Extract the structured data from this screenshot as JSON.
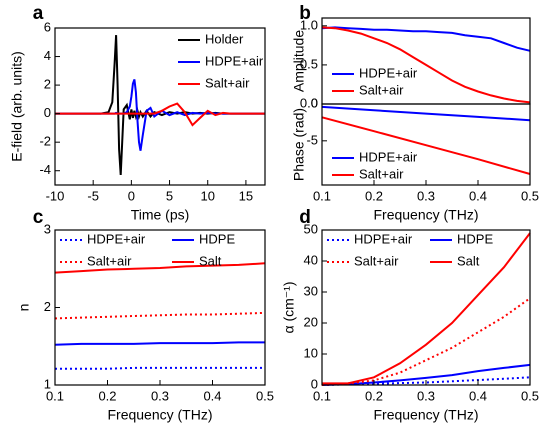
{
  "chart_data": [
    {
      "type": "line",
      "label": "a",
      "xlabel": "Time (ps)",
      "ylabel": "E-field (arb. units)",
      "xlim": [
        -10,
        17.5
      ],
      "xticks": [
        -10,
        -5,
        0,
        5,
        10,
        15
      ],
      "ylim": [
        -5,
        6
      ],
      "yticks": [
        -4,
        -2,
        0,
        2,
        4,
        6
      ],
      "legend": "upper right",
      "x": [
        -10,
        -8,
        -6,
        -4,
        -3,
        -2.5,
        -2.2,
        -2,
        -1.8,
        -1.6,
        -1.4,
        -1.2,
        -1,
        -0.6,
        -0.2,
        0,
        0.2,
        0.4,
        0.6,
        0.8,
        1,
        1.2,
        1.5,
        2,
        2.5,
        3,
        4,
        5,
        6,
        7,
        8,
        9,
        10,
        11,
        12,
        13,
        15,
        17.5
      ],
      "series": [
        {
          "name": "Holder",
          "color": "#000000",
          "values": [
            0,
            0,
            0,
            0,
            0.1,
            0.8,
            3.5,
            5.5,
            2,
            -2.5,
            -4.3,
            -2,
            0.3,
            0.6,
            -0.4,
            0.3,
            -0.3,
            0.2,
            -0.2,
            0.2,
            -0.2,
            0.1,
            -0.2,
            0.2,
            -0.2,
            0.1,
            -0.1,
            0.1,
            0,
            0.1,
            0,
            0.05,
            0,
            0.05,
            0,
            0,
            0,
            0
          ]
        },
        {
          "name": "HDPE+air",
          "color": "#0000ff",
          "values": [
            0,
            0,
            0,
            0,
            0,
            0,
            0,
            0.05,
            0,
            0,
            0,
            0,
            0,
            0.1,
            0.5,
            1.2,
            2.1,
            2.4,
            1.5,
            -0.5,
            -2,
            -2.6,
            -1.5,
            0.2,
            0.4,
            -0.2,
            0.2,
            -0.1,
            0.1,
            -0.1,
            0.05,
            0,
            0.05,
            0,
            0,
            0,
            0,
            0
          ]
        },
        {
          "name": "Salt+air",
          "color": "#ff0000",
          "values": [
            0,
            0,
            0,
            0,
            0,
            0,
            0,
            0,
            0,
            0,
            0,
            0,
            0,
            0,
            0,
            0,
            0,
            0,
            0,
            0,
            0,
            0,
            0,
            0,
            0,
            0,
            0.2,
            0.5,
            0.7,
            0.1,
            -0.8,
            -0.3,
            0.2,
            -0.1,
            0.05,
            0,
            0,
            0
          ]
        }
      ]
    },
    {
      "type": "line",
      "label": "b",
      "ylabel": "Amplitude",
      "xlim": [
        0.1,
        0.5
      ],
      "ylim": [
        0,
        1.1
      ],
      "yticks": [
        {
          "value": 0,
          "label": "0.0"
        },
        {
          "value": 0.5,
          "label": "0.5"
        },
        {
          "value": 1,
          "label": "1.0"
        }
      ],
      "legend": "lower left",
      "x": [
        0.1,
        0.125,
        0.15,
        0.175,
        0.2,
        0.225,
        0.25,
        0.275,
        0.3,
        0.325,
        0.35,
        0.375,
        0.4,
        0.425,
        0.45,
        0.475,
        0.5
      ],
      "series": [
        {
          "name": "HDPE+air",
          "color": "#0000ff",
          "values": [
            0.97,
            0.98,
            0.97,
            0.96,
            0.95,
            0.95,
            0.94,
            0.93,
            0.93,
            0.92,
            0.91,
            0.88,
            0.86,
            0.84,
            0.78,
            0.72,
            0.68
          ]
        },
        {
          "name": "Salt+air",
          "color": "#ff0000",
          "values": [
            0.98,
            0.97,
            0.94,
            0.9,
            0.84,
            0.78,
            0.7,
            0.6,
            0.5,
            0.4,
            0.3,
            0.22,
            0.16,
            0.11,
            0.07,
            0.04,
            0.02
          ]
        }
      ]
    },
    {
      "type": "line",
      "xlabel": "Frequency (THz)",
      "ylabel": "Phase (rad)",
      "xlim": [
        0.1,
        0.5
      ],
      "xticks": [
        0.1,
        0.2,
        0.3,
        0.4,
        0.5
      ],
      "ylim": [
        -11,
        0
      ],
      "yticks": [
        0,
        -5
      ],
      "legend": "lower left",
      "x": [
        0.1,
        0.2,
        0.3,
        0.4,
        0.5
      ],
      "series": [
        {
          "name": "HDPE+air",
          "color": "#0000ff",
          "values": [
            -0.4,
            -0.85,
            -1.3,
            -1.75,
            -2.2
          ]
        },
        {
          "name": "Salt+air",
          "color": "#ff0000",
          "values": [
            -1.8,
            -3.7,
            -5.6,
            -7.5,
            -9.5
          ]
        }
      ]
    },
    {
      "type": "line",
      "label": "c",
      "xlabel": "Frequency (THz)",
      "ylabel": "n",
      "xlim": [
        0.1,
        0.5
      ],
      "xticks": [
        0.1,
        0.2,
        0.3,
        0.4,
        0.5
      ],
      "ylim": [
        1,
        3
      ],
      "yticks": [
        1,
        2,
        3
      ],
      "legend": "upper",
      "x": [
        0.1,
        0.15,
        0.2,
        0.25,
        0.3,
        0.35,
        0.4,
        0.45,
        0.5
      ],
      "series": [
        {
          "name": "HDPE+air",
          "color": "#0000ff",
          "dotted": true,
          "values": [
            1.21,
            1.21,
            1.21,
            1.22,
            1.22,
            1.22,
            1.22,
            1.22,
            1.22
          ]
        },
        {
          "name": "HDPE",
          "color": "#0000ff",
          "values": [
            1.52,
            1.53,
            1.53,
            1.53,
            1.54,
            1.54,
            1.54,
            1.55,
            1.55
          ]
        },
        {
          "name": "Salt+air",
          "color": "#ff0000",
          "dotted": true,
          "values": [
            1.86,
            1.87,
            1.88,
            1.89,
            1.9,
            1.91,
            1.91,
            1.92,
            1.93
          ]
        },
        {
          "name": "Salt",
          "color": "#ff0000",
          "values": [
            2.45,
            2.47,
            2.49,
            2.5,
            2.51,
            2.53,
            2.54,
            2.55,
            2.57
          ]
        }
      ]
    },
    {
      "type": "line",
      "label": "d",
      "xlabel": "Frequency (THz)",
      "ylabel": "α (cm⁻¹)",
      "xlim": [
        0.1,
        0.5
      ],
      "xticks": [
        0.1,
        0.2,
        0.3,
        0.4,
        0.5
      ],
      "ylim": [
        0,
        50
      ],
      "yticks": [
        0,
        10,
        20,
        30,
        40,
        50
      ],
      "legend": "upper",
      "x": [
        0.1,
        0.15,
        0.2,
        0.25,
        0.3,
        0.35,
        0.4,
        0.45,
        0.5
      ],
      "series": [
        {
          "name": "HDPE+air",
          "color": "#0000ff",
          "dotted": true,
          "values": [
            0,
            0.2,
            0.4,
            0.6,
            0.8,
            1.2,
            1.6,
            2,
            2.5
          ]
        },
        {
          "name": "HDPE",
          "color": "#0000ff",
          "values": [
            0,
            0.3,
            0.8,
            1.5,
            2.3,
            3.2,
            4.5,
            5.5,
            6.5
          ]
        },
        {
          "name": "Salt+air",
          "color": "#ff0000",
          "dotted": true,
          "values": [
            0,
            0.5,
            1.5,
            4,
            8,
            12,
            17,
            22,
            28
          ]
        },
        {
          "name": "Salt",
          "color": "#ff0000",
          "values": [
            0.5,
            0.5,
            2.5,
            7,
            13,
            20,
            29,
            38,
            49
          ]
        }
      ]
    }
  ]
}
